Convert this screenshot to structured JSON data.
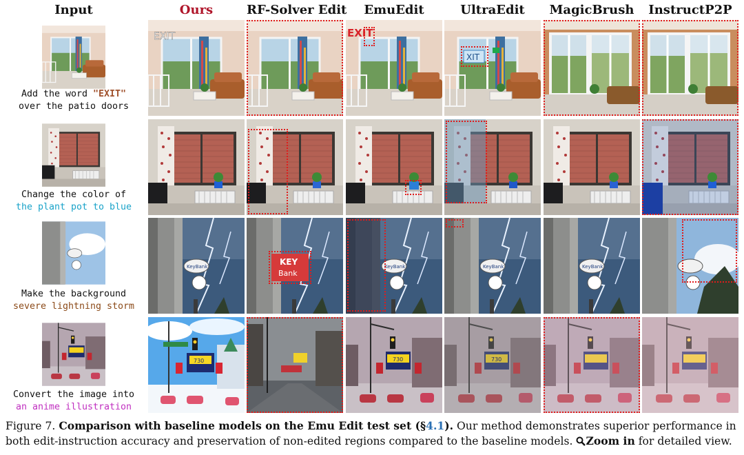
{
  "headers": {
    "input": "Input",
    "ours": "Ours",
    "rf": "RF-Solver Edit",
    "emu": "EmuEdit",
    "ultra": "UltraEdit",
    "magic": "MagicBrush",
    "instruct": "InstructP2P"
  },
  "rows": [
    {
      "line1": "Add the word \"EXIT\"",
      "line2": "over the patio doors",
      "color": "#a0522d"
    },
    {
      "line1": "Change the color of",
      "line2": "the plant pot to blue",
      "color": "#1aa3c9"
    },
    {
      "line1": "Make the background",
      "line2": "severe lightning storm",
      "color": "#8b4a18"
    },
    {
      "line1": "Convert the image into",
      "line2": "an anime illustration",
      "color": "#c030c0"
    }
  ],
  "image_text": {
    "exit_ours": "EXIT",
    "exit_emu": "EXIT",
    "exit_ultra": "XIT",
    "keybank": "KeyBank",
    "key": "KEY",
    "bank": "Bank",
    "billboard": "730"
  },
  "caption": {
    "fig": "Figure 7.",
    "title": "Comparison with baseline models on the Emu Edit test set (§",
    "ref": "4.1",
    "title_end": ").",
    "body": " Our method demonstrates superior performance in both edit-instruction accuracy and preservation of non-edited regions compared to the baseline models.",
    "zoom": "Zoom in",
    "tail": " for detailed view."
  },
  "colors": {
    "ours_header": "#b0152a",
    "highlight_box": "#e01b1b",
    "ref": "#2a6fb3"
  }
}
